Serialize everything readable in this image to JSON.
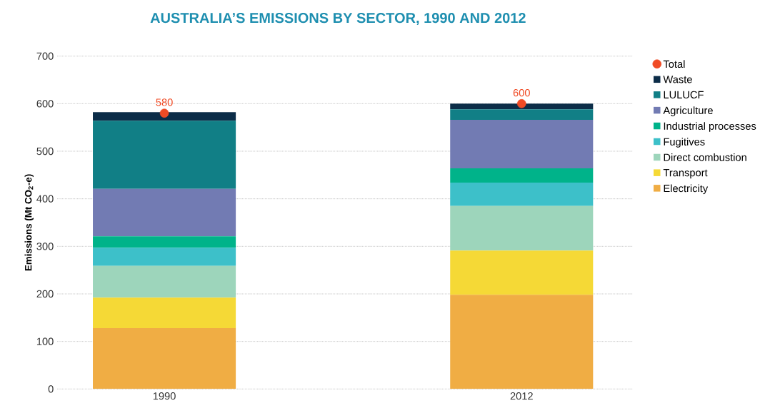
{
  "chart_data": {
    "type": "bar",
    "stacked": true,
    "title": "AUSTRALIA’S EMISSIONS BY SECTOR, 1990 AND 2012",
    "ylabel": "Emissions (Mt CO$_{2}$-e)",
    "categories": [
      "1990",
      "2012"
    ],
    "series": [
      {
        "name": "Electricity",
        "color": "#f0ad44",
        "values": [
          128,
          198
        ]
      },
      {
        "name": "Transport",
        "color": "#f5d936",
        "values": [
          64,
          93
        ]
      },
      {
        "name": "Direct combustion",
        "color": "#9dd5bb",
        "values": [
          67,
          94
        ]
      },
      {
        "name": "Fugitives",
        "color": "#3dc0c9",
        "values": [
          38,
          49
        ]
      },
      {
        "name": "Industrial processes",
        "color": "#00b38a",
        "values": [
          24,
          30
        ]
      },
      {
        "name": "Agriculture",
        "color": "#727bb3",
        "values": [
          100,
          102
        ]
      },
      {
        "name": "LULUCF",
        "color": "#117f86",
        "values": [
          143,
          22
        ]
      },
      {
        "name": "Waste",
        "color": "#0c2d48",
        "values": [
          18,
          12
        ]
      },
      {
        "name": "Total",
        "type": "scatter",
        "color": "#f04b25",
        "values": [
          580,
          600
        ],
        "value_labels": [
          "580",
          "600"
        ]
      }
    ],
    "ylim": [
      0,
      700
    ],
    "yticks": [
      0,
      100,
      200,
      300,
      400,
      500,
      600,
      700
    ],
    "grid": "y",
    "legend": "right"
  }
}
